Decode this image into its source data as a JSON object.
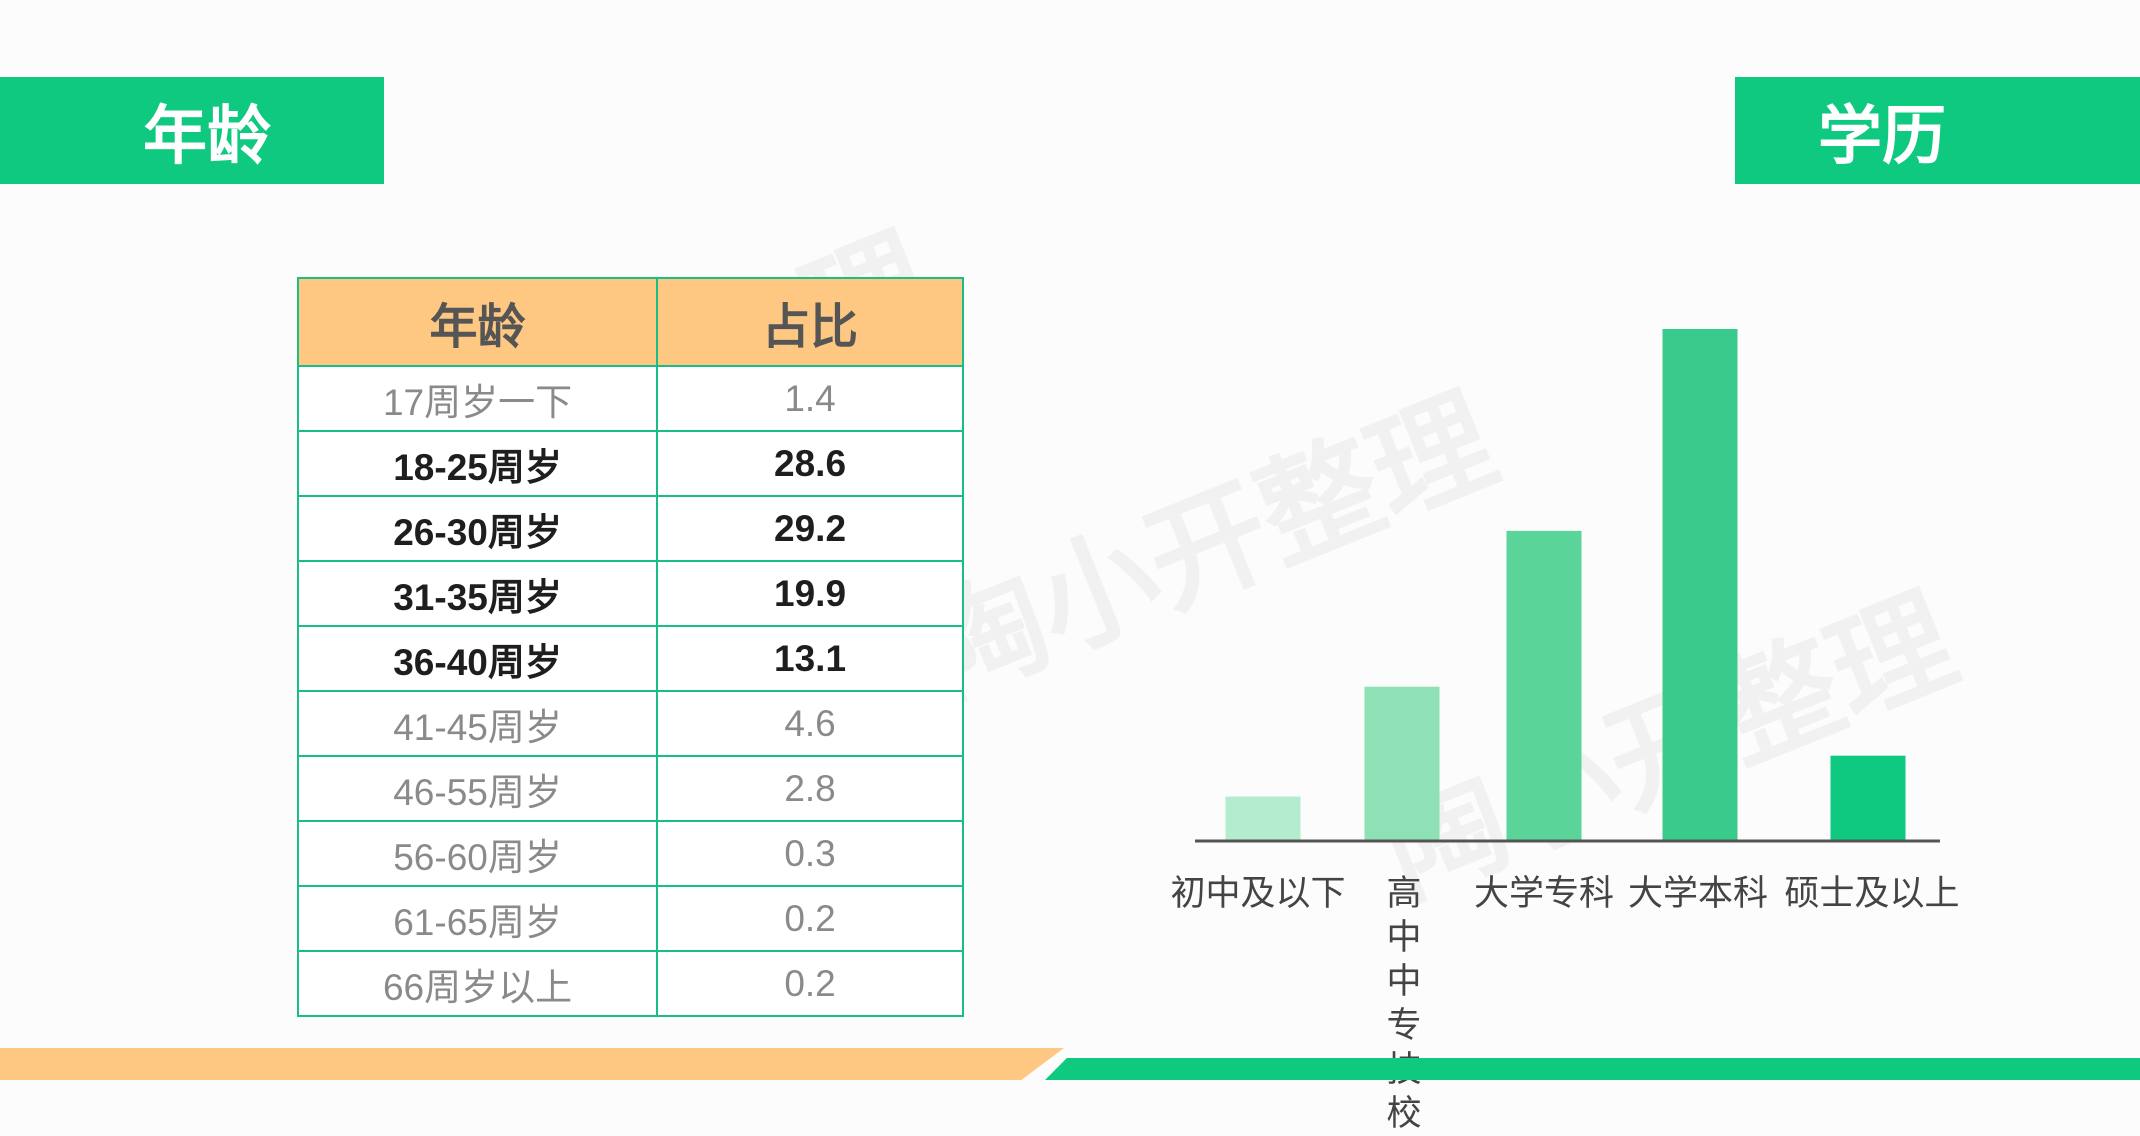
{
  "left_tag": "年龄",
  "right_tag": "学历",
  "watermark_text": "陶小开整理",
  "age_table": {
    "headers": [
      "年龄",
      "占比"
    ],
    "rows": [
      {
        "label": "17周岁一下",
        "value": "1.4",
        "bold": false
      },
      {
        "label": "18-25周岁",
        "value": "28.6",
        "bold": true
      },
      {
        "label": "26-30周岁",
        "value": "29.2",
        "bold": true
      },
      {
        "label": "31-35周岁",
        "value": "19.9",
        "bold": true
      },
      {
        "label": "36-40周岁",
        "value": "13.1",
        "bold": true
      },
      {
        "label": "41-45周岁",
        "value": "4.6",
        "bold": false
      },
      {
        "label": "46-55周岁",
        "value": "2.8",
        "bold": false
      },
      {
        "label": "56-60周岁",
        "value": "0.3",
        "bold": false
      },
      {
        "label": "61-65周岁",
        "value": "0.2",
        "bold": false
      },
      {
        "label": "66周岁以上",
        "value": "0.2",
        "bold": false
      }
    ]
  },
  "chart_data": {
    "type": "bar",
    "categories": [
      "初中及以下",
      "高中中专技校",
      "大学专科",
      "大学本科",
      "硕士及以上"
    ],
    "values": [
      3.4,
      12.0,
      24.2,
      40.0,
      6.6
    ],
    "colors": [
      "#b3ecce",
      "#8ee0b5",
      "#5bd49a",
      "#39cb8b",
      "#0ec97f"
    ],
    "title": "",
    "xlabel": "",
    "ylabel": "",
    "ylim": [
      0,
      40
    ],
    "grid": false,
    "legend": "none"
  }
}
